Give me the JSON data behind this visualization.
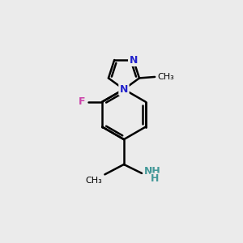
{
  "background_color": "#ebebeb",
  "bond_color": "#000000",
  "N_color": "#2222cc",
  "F_color": "#cc44aa",
  "NH_color": "#449999",
  "bond_width": 1.8,
  "figsize": [
    3.0,
    3.0
  ],
  "dpi": 100,
  "bx": 5.1,
  "by": 5.3,
  "br": 1.05,
  "imid_ri": 0.68,
  "methyl_label": "CH₃",
  "F_label": "F",
  "N_label": "N",
  "NH_label": "NH",
  "H_label": "H"
}
